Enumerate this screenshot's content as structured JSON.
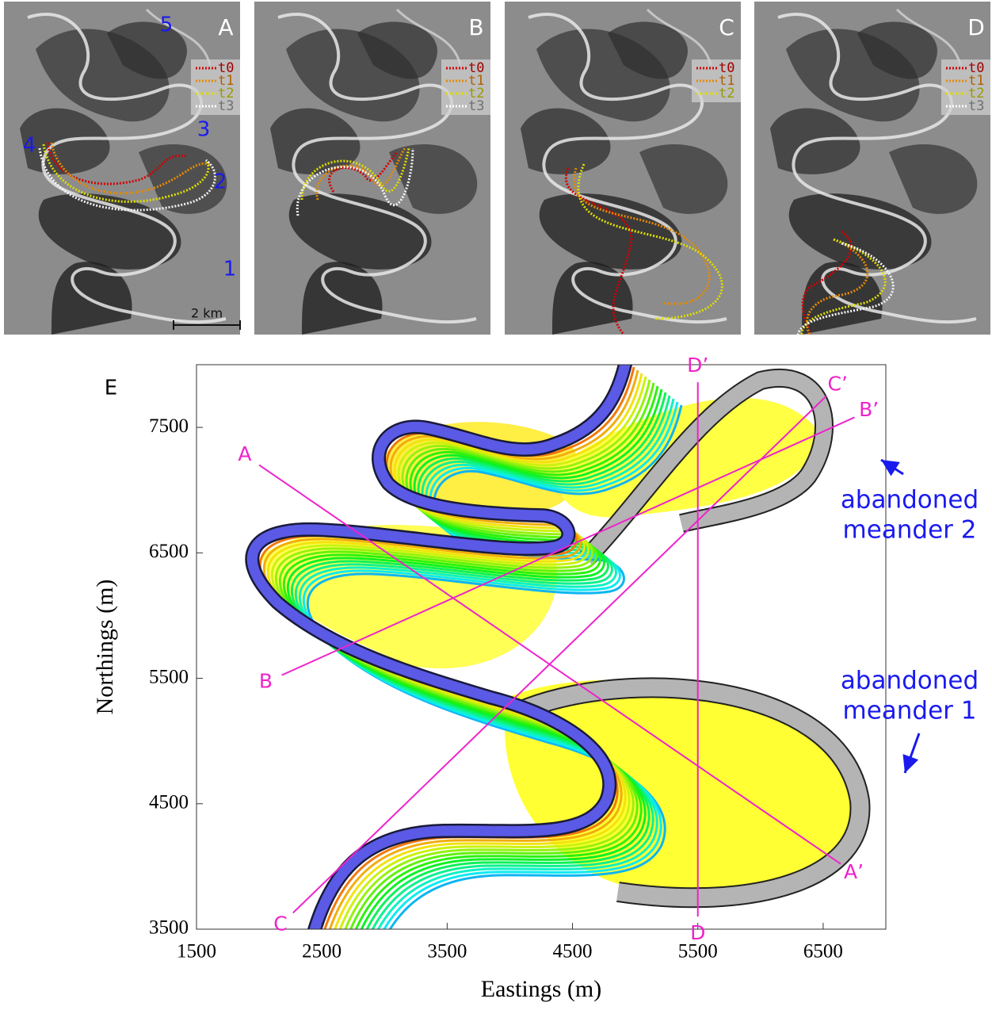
{
  "panels": [
    {
      "label": "A",
      "legend": [
        "t0",
        "t1",
        "t2",
        "t3"
      ]
    },
    {
      "label": "B",
      "legend": [
        "t0",
        "t1",
        "t2",
        "t3"
      ]
    },
    {
      "label": "C",
      "legend": [
        "t0",
        "t1",
        "t2"
      ]
    },
    {
      "label": "D",
      "legend": [
        "t0",
        "t1",
        "t2",
        "t3"
      ]
    }
  ],
  "legend_colors": [
    "#d40000",
    "#e58a00",
    "#dede00",
    "#f4f4f4"
  ],
  "site_numbers": [
    "1",
    "2",
    "3",
    "4",
    "5"
  ],
  "scale_bar": "2 km",
  "chart_data": {
    "type": "map",
    "panel_label": "E",
    "x_label": "Eastings (m)",
    "y_label": "Northings (m)",
    "xlim": [
      1500,
      7000
    ],
    "ylim": [
      3500,
      8000
    ],
    "xticks": [
      1500,
      2500,
      3500,
      4500,
      5500,
      6500
    ],
    "yticks": [
      3500,
      4500,
      5500,
      6500,
      7500
    ],
    "section_color": "#ee22cc",
    "sections": [
      {
        "start": "A",
        "end": "A’",
        "x0": 2000,
        "y0": 7200,
        "x1": 6640,
        "y1": 4020
      },
      {
        "start": "B",
        "end": "B’",
        "x0": 2180,
        "y0": 5525,
        "x1": 6750,
        "y1": 7580
      },
      {
        "start": "C",
        "end": "C’",
        "x0": 2270,
        "y0": 3630,
        "x1": 6525,
        "y1": 7750
      },
      {
        "start": "D",
        "end": "D’",
        "x0": 5500,
        "y0": 3600,
        "x1": 5500,
        "y1": 7860
      }
    ],
    "annotations": [
      {
        "lines": [
          "abandoned",
          "meander 2"
        ]
      },
      {
        "lines": [
          "abandoned",
          "meander 1"
        ]
      }
    ]
  }
}
